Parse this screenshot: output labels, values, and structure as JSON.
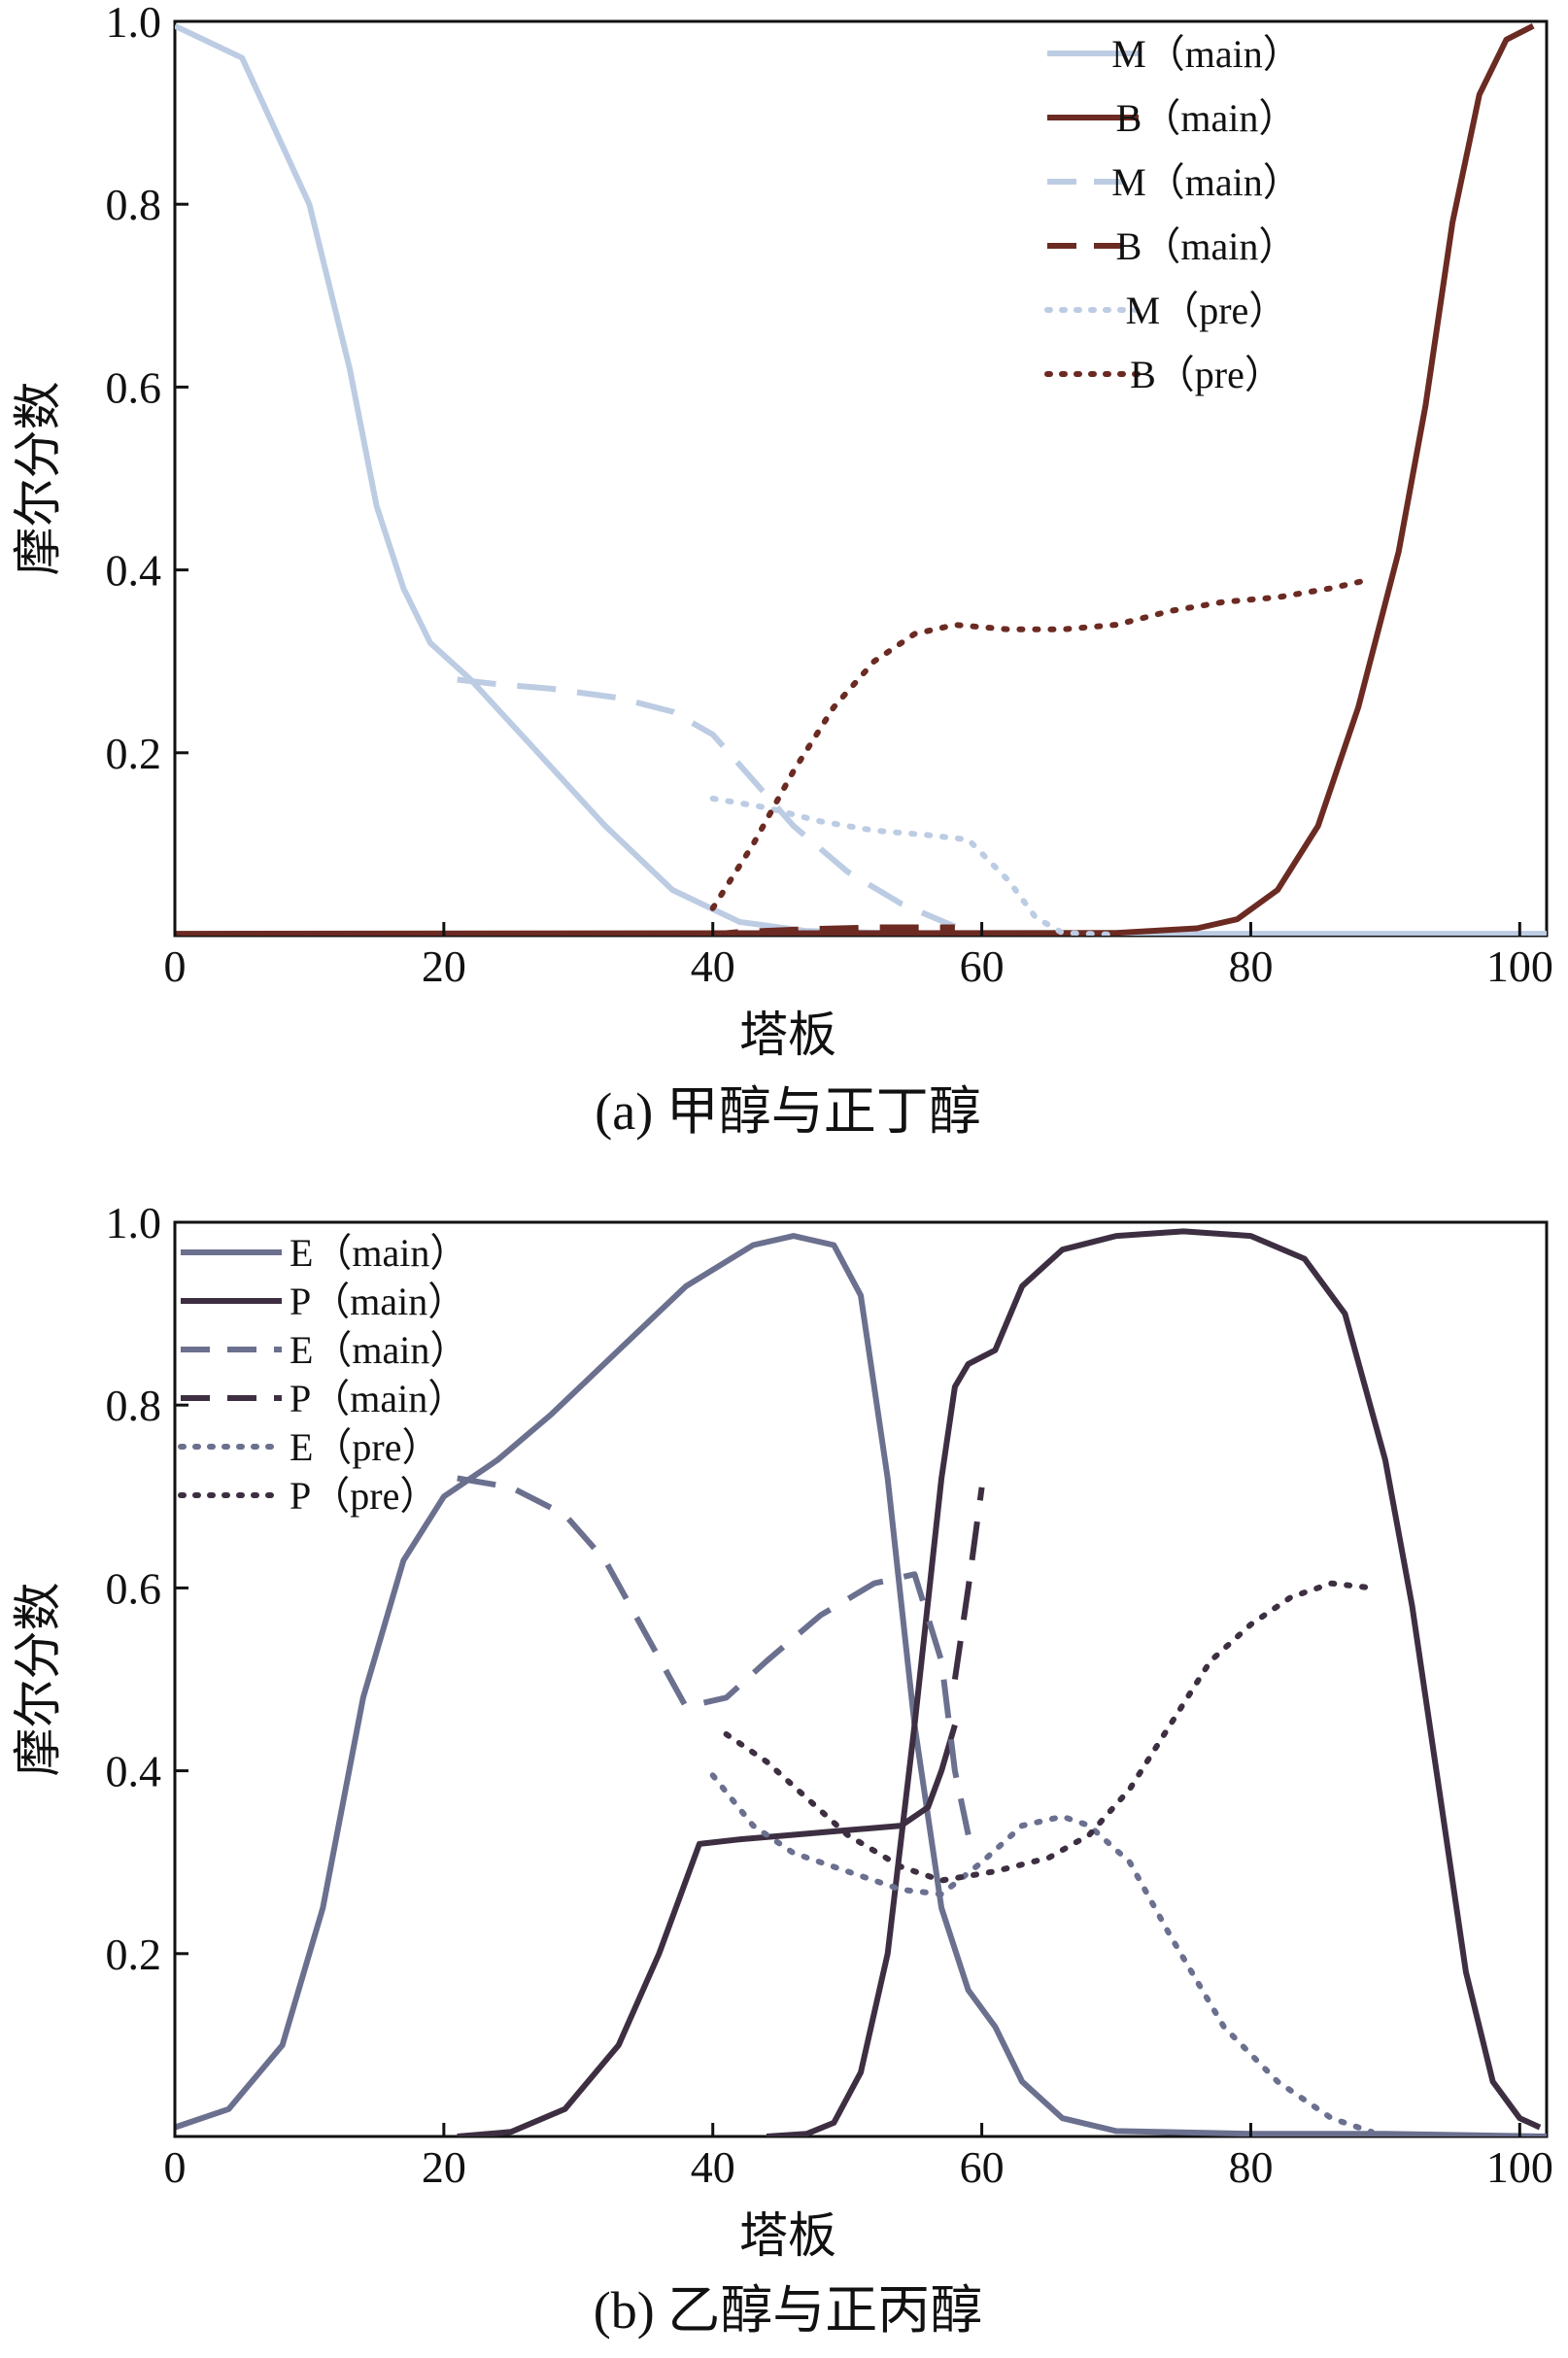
{
  "chart_data": [
    {
      "type": "line",
      "title": "(a) 甲醇与正丁醇",
      "xlabel": "塔板",
      "ylabel": "摩尔分数",
      "xlim": [
        0,
        102
      ],
      "ylim": [
        0,
        1.0
      ],
      "xticks": [
        0,
        20,
        40,
        60,
        80,
        100
      ],
      "xtick_labels": [
        "0",
        "20",
        "40",
        "60",
        "80",
        "100"
      ],
      "yticks": [
        0.2,
        0.4,
        0.6,
        0.8,
        1.0
      ],
      "ytick_labels": [
        "0.2",
        "0.4",
        "0.6",
        "0.8",
        "1.0"
      ],
      "grid": false,
      "legend_position": "top-right",
      "series": [
        {
          "name": "M（main）",
          "color": "#bccce3",
          "dash": "solid",
          "points": [
            [
              0,
              0.995
            ],
            [
              5,
              0.96
            ],
            [
              10,
              0.8
            ],
            [
              13,
              0.62
            ],
            [
              15,
              0.47
            ],
            [
              17,
              0.38
            ],
            [
              19,
              0.32
            ],
            [
              22,
              0.28
            ],
            [
              27,
              0.2
            ],
            [
              32,
              0.12
            ],
            [
              37,
              0.05
            ],
            [
              42,
              0.015
            ],
            [
              47,
              0.005
            ],
            [
              55,
              0.002
            ],
            [
              102,
              0.002
            ]
          ]
        },
        {
          "name": "B（main）",
          "color": "#6b2a22",
          "dash": "solid",
          "points": [
            [
              0,
              0.002
            ],
            [
              70,
              0.003
            ],
            [
              76,
              0.008
            ],
            [
              79,
              0.018
            ],
            [
              82,
              0.05
            ],
            [
              85,
              0.12
            ],
            [
              88,
              0.25
            ],
            [
              91,
              0.42
            ],
            [
              93,
              0.58
            ],
            [
              95,
              0.78
            ],
            [
              97,
              0.92
            ],
            [
              99,
              0.98
            ],
            [
              101,
              0.995
            ]
          ]
        },
        {
          "name": "M（main）",
          "color": "#bccce3",
          "dash": "dashed",
          "points": [
            [
              21,
              0.28
            ],
            [
              24,
              0.275
            ],
            [
              28,
              0.27
            ],
            [
              33,
              0.26
            ],
            [
              37,
              0.245
            ],
            [
              40,
              0.22
            ],
            [
              43,
              0.17
            ],
            [
              46,
              0.12
            ],
            [
              50,
              0.07
            ],
            [
              54,
              0.035
            ],
            [
              58,
              0.01
            ]
          ]
        },
        {
          "name": "B（main）",
          "color": "#6b2a22",
          "dash": "dashed",
          "points": [
            [
              39,
              0.0
            ],
            [
              42,
              0.004
            ],
            [
              47,
              0.007
            ],
            [
              52,
              0.009
            ],
            [
              58,
              0.009
            ]
          ]
        },
        {
          "name": "M（pre）",
          "color": "#bccce3",
          "dash": "dotted",
          "points": [
            [
              40,
              0.15
            ],
            [
              44,
              0.14
            ],
            [
              48,
              0.125
            ],
            [
              52,
              0.115
            ],
            [
              56,
              0.11
            ],
            [
              59,
              0.105
            ],
            [
              62,
              0.06
            ],
            [
              64,
              0.02
            ],
            [
              66,
              0.003
            ],
            [
              70,
              0.001
            ]
          ]
        },
        {
          "name": "B（pre）",
          "color": "#6b2a22",
          "dash": "dotted",
          "points": [
            [
              40,
              0.03
            ],
            [
              43,
              0.1
            ],
            [
              46,
              0.18
            ],
            [
              49,
              0.25
            ],
            [
              52,
              0.3
            ],
            [
              55,
              0.33
            ],
            [
              58,
              0.34
            ],
            [
              62,
              0.335
            ],
            [
              66,
              0.335
            ],
            [
              70,
              0.34
            ],
            [
              74,
              0.355
            ],
            [
              78,
              0.365
            ],
            [
              82,
              0.37
            ],
            [
              86,
              0.38
            ],
            [
              89,
              0.39
            ]
          ]
        }
      ]
    },
    {
      "type": "line",
      "title": "(b) 乙醇与正丙醇",
      "xlabel": "塔板",
      "ylabel": "摩尔分数",
      "xlim": [
        0,
        102
      ],
      "ylim": [
        0,
        1.0
      ],
      "xticks": [
        0,
        20,
        40,
        60,
        80,
        100
      ],
      "xtick_labels": [
        "0",
        "20",
        "40",
        "60",
        "80",
        "100"
      ],
      "yticks": [
        0.2,
        0.4,
        0.6,
        0.8,
        1.0
      ],
      "ytick_labels": [
        "0.2",
        "0.4",
        "0.6",
        "0.8",
        "1.0"
      ],
      "grid": false,
      "legend_position": "top-left",
      "series": [
        {
          "name": "E（main）",
          "color": "#6b708f",
          "dash": "solid",
          "points": [
            [
              0,
              0.01
            ],
            [
              4,
              0.03
            ],
            [
              8,
              0.1
            ],
            [
              11,
              0.25
            ],
            [
              14,
              0.48
            ],
            [
              17,
              0.63
            ],
            [
              20,
              0.7
            ],
            [
              24,
              0.74
            ],
            [
              28,
              0.79
            ],
            [
              33,
              0.86
            ],
            [
              38,
              0.93
            ],
            [
              43,
              0.975
            ],
            [
              46,
              0.985
            ],
            [
              49,
              0.975
            ],
            [
              51,
              0.92
            ],
            [
              53,
              0.72
            ],
            [
              55,
              0.45
            ],
            [
              57,
              0.25
            ],
            [
              59,
              0.16
            ],
            [
              61,
              0.12
            ],
            [
              63,
              0.06
            ],
            [
              66,
              0.02
            ],
            [
              70,
              0.006
            ],
            [
              80,
              0.003
            ],
            [
              90,
              0.003
            ],
            [
              102,
              0.0
            ]
          ]
        },
        {
          "name": "P（main）",
          "color": "#3d2f41",
          "dash": "solid",
          "points": [
            [
              21,
              0.0
            ],
            [
              25,
              0.005
            ],
            [
              29,
              0.03
            ],
            [
              33,
              0.1
            ],
            [
              36,
              0.2
            ],
            [
              39,
              0.32
            ],
            [
              42,
              0.325
            ],
            [
              46,
              0.33
            ],
            [
              50,
              0.335
            ],
            [
              54,
              0.34
            ],
            [
              56,
              0.36
            ],
            [
              57,
              0.4
            ],
            [
              58,
              0.45
            ]
          ]
        },
        {
          "name": "P（main）",
          "color": "#3d2f41",
          "dash": "solid",
          "points": [
            [
              44,
              0.0
            ],
            [
              47,
              0.003
            ],
            [
              49,
              0.015
            ],
            [
              51,
              0.07
            ],
            [
              53,
              0.2
            ],
            [
              55,
              0.45
            ],
            [
              57,
              0.72
            ],
            [
              58,
              0.82
            ],
            [
              59,
              0.845
            ],
            [
              61,
              0.86
            ],
            [
              63,
              0.93
            ],
            [
              66,
              0.97
            ],
            [
              70,
              0.985
            ],
            [
              75,
              0.99
            ],
            [
              80,
              0.985
            ],
            [
              84,
              0.96
            ],
            [
              87,
              0.9
            ],
            [
              90,
              0.74
            ],
            [
              92,
              0.58
            ],
            [
              94,
              0.38
            ],
            [
              96,
              0.18
            ],
            [
              98,
              0.06
            ],
            [
              100,
              0.02
            ],
            [
              101.5,
              0.01
            ]
          ]
        },
        {
          "name": "E（main）",
          "color": "#6b708f",
          "dash": "dashed",
          "points": [
            [
              21,
              0.72
            ],
            [
              25,
              0.71
            ],
            [
              29,
              0.68
            ],
            [
              32,
              0.63
            ],
            [
              35,
              0.55
            ],
            [
              38,
              0.47
            ],
            [
              41,
              0.48
            ],
            [
              44,
              0.52
            ],
            [
              48,
              0.57
            ],
            [
              52,
              0.605
            ],
            [
              55,
              0.615
            ],
            [
              57,
              0.52
            ],
            [
              58,
              0.4
            ],
            [
              59,
              0.33
            ]
          ]
        },
        {
          "name": "P（main）",
          "color": "#3d2f41",
          "dash": "dashed",
          "points": [
            [
              58,
              0.5
            ],
            [
              59,
              0.6
            ],
            [
              60,
              0.71
            ]
          ]
        },
        {
          "name": "E（pre）",
          "color": "#6b708f",
          "dash": "dotted",
          "points": [
            [
              40,
              0.395
            ],
            [
              43,
              0.34
            ],
            [
              46,
              0.31
            ],
            [
              50,
              0.29
            ],
            [
              54,
              0.27
            ],
            [
              57,
              0.265
            ],
            [
              60,
              0.3
            ],
            [
              63,
              0.34
            ],
            [
              66,
              0.35
            ],
            [
              68,
              0.34
            ],
            [
              71,
              0.3
            ],
            [
              74,
              0.22
            ],
            [
              78,
              0.12
            ],
            [
              82,
              0.06
            ],
            [
              86,
              0.02
            ],
            [
              89,
              0.005
            ]
          ]
        },
        {
          "name": "P（pre）",
          "color": "#3d2f41",
          "dash": "dotted",
          "points": [
            [
              41,
              0.44
            ],
            [
              44,
              0.41
            ],
            [
              47,
              0.37
            ],
            [
              50,
              0.33
            ],
            [
              54,
              0.295
            ],
            [
              57,
              0.28
            ],
            [
              61,
              0.29
            ],
            [
              65,
              0.305
            ],
            [
              68,
              0.33
            ],
            [
              71,
              0.38
            ],
            [
              74,
              0.45
            ],
            [
              77,
              0.52
            ],
            [
              80,
              0.56
            ],
            [
              83,
              0.59
            ],
            [
              86,
              0.605
            ],
            [
              89,
              0.6
            ]
          ]
        }
      ]
    }
  ],
  "legends": [
    [
      "M（main）",
      "B（main）",
      "M（main）",
      "B（main）",
      "M（pre）",
      "B（pre）"
    ],
    [
      "E（main）",
      "P（main）",
      "E（main）",
      "P（main）",
      "E（pre）",
      "P（pre）"
    ]
  ]
}
